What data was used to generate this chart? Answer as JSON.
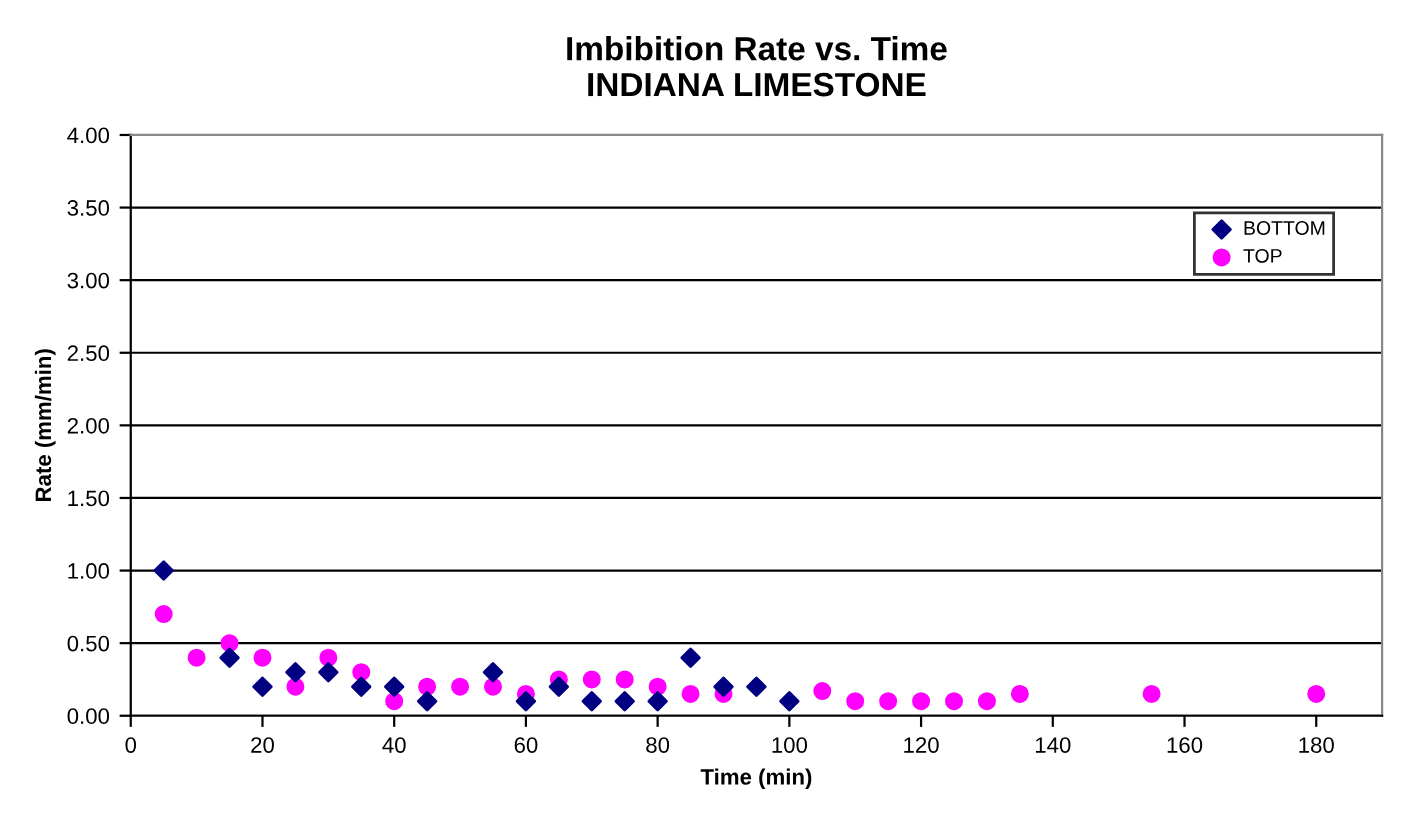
{
  "chart_data": {
    "type": "scatter",
    "title": "Imbibition Rate vs. Time\nINDIANA LIMESTONE",
    "xlabel": "Time (min)",
    "ylabel": "Rate (mm/min)",
    "xlim": [
      0,
      190
    ],
    "xticks": [
      0,
      20,
      40,
      60,
      80,
      100,
      120,
      140,
      160,
      180
    ],
    "ylim": [
      0,
      4
    ],
    "yticks": [
      {
        "value": 0,
        "label": "0.00"
      },
      {
        "value": 0.5,
        "label": "0.50"
      },
      {
        "value": 1,
        "label": "1.00"
      },
      {
        "value": 1.5,
        "label": "1.50"
      },
      {
        "value": 2,
        "label": "2.00"
      },
      {
        "value": 2.5,
        "label": "2.50"
      },
      {
        "value": 3,
        "label": "3.00"
      },
      {
        "value": 3.5,
        "label": "3.50"
      },
      {
        "value": 4,
        "label": "4.00"
      }
    ],
    "grid": "y",
    "legend": "top right",
    "series": [
      {
        "name": "BOTTOM",
        "color": "#000080",
        "marker": "diamond",
        "x": [
          5,
          15,
          20,
          25,
          30,
          35,
          40,
          45,
          55,
          60,
          65,
          70,
          75,
          80,
          85,
          90,
          95,
          100
        ],
        "values": [
          1.0,
          0.4,
          0.2,
          0.3,
          0.3,
          0.2,
          0.2,
          0.1,
          0.3,
          0.1,
          0.2,
          0.1,
          0.1,
          0.1,
          0.4,
          0.2,
          0.2,
          0.1
        ]
      },
      {
        "name": "TOP",
        "color": "#ff00ff",
        "marker": "circle",
        "x": [
          5,
          10,
          15,
          20,
          25,
          30,
          35,
          40,
          45,
          50,
          55,
          60,
          65,
          70,
          75,
          80,
          85,
          90,
          105,
          110,
          115,
          120,
          125,
          130,
          135,
          155,
          180
        ],
        "values": [
          0.7,
          0.4,
          0.5,
          0.4,
          0.2,
          0.4,
          0.3,
          0.1,
          0.2,
          0.2,
          0.2,
          0.15,
          0.25,
          0.25,
          0.25,
          0.2,
          0.15,
          0.15,
          0.17,
          0.1,
          0.1,
          0.1,
          0.1,
          0.1,
          0.15,
          0.15,
          0.15
        ]
      }
    ]
  }
}
